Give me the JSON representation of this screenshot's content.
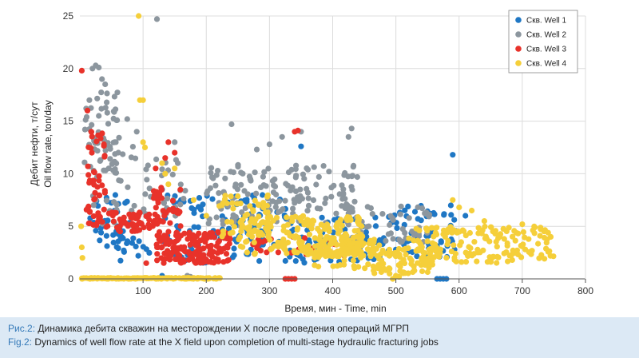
{
  "chart_data": {
    "type": "scatter",
    "xlabel": "Время, мин - Time, min",
    "ylabel_ru": "Дебит нефти, т/сут",
    "ylabel_en": "Oil flow rate, ton/day",
    "xlim": [
      0,
      800
    ],
    "ylim": [
      0,
      25
    ],
    "xticks": [
      100,
      200,
      300,
      400,
      500,
      600,
      700,
      800
    ],
    "yticks": [
      0,
      5,
      10,
      15,
      20,
      25
    ],
    "legend_position": "top-right",
    "series": [
      {
        "name": "Скв. Well 1",
        "color": "#1f77c4",
        "clusters": [
          {
            "x": [
              15,
              80
            ],
            "y": [
              3,
              8
            ],
            "n": 40
          },
          {
            "x": [
              60,
              110
            ],
            "y": [
              1,
              4
            ],
            "n": 15
          },
          {
            "x": [
              130,
              330
            ],
            "y": [
              1.5,
              8
            ],
            "n": 110
          },
          {
            "x": [
              330,
              480
            ],
            "y": [
              1.5,
              6
            ],
            "n": 70
          },
          {
            "x": [
              480,
              600
            ],
            "y": [
              2,
              7
            ],
            "n": 60
          }
        ],
        "points": [
          [
            590,
            11.8
          ],
          [
            565,
            0
          ],
          [
            570,
            0
          ],
          [
            575,
            0
          ],
          [
            580,
            0
          ],
          [
            130,
            0.3
          ],
          [
            350,
            12.6
          ],
          [
            130,
            8.5
          ],
          [
            160,
            7.5
          ],
          [
            610,
            6
          ]
        ]
      },
      {
        "name": "Скв. Well 2",
        "color": "#8c969e",
        "clusters": [
          {
            "x": [
              3,
              60
            ],
            "y": [
              10,
              18
            ],
            "n": 45
          },
          {
            "x": [
              20,
              90
            ],
            "y": [
              5,
              14
            ],
            "n": 40
          },
          {
            "x": [
              100,
              170
            ],
            "y": [
              6,
              12
            ],
            "n": 30
          },
          {
            "x": [
              200,
              440
            ],
            "y": [
              5,
              11
            ],
            "n": 160
          },
          {
            "x": [
              420,
              560
            ],
            "y": [
              3.5,
              7
            ],
            "n": 60
          }
        ],
        "points": [
          [
            122,
            24.7
          ],
          [
            20,
            20
          ],
          [
            25,
            20.3
          ],
          [
            30,
            20.1
          ],
          [
            35,
            19
          ],
          [
            40,
            18.5
          ],
          [
            15,
            17
          ],
          [
            10,
            16.2
          ],
          [
            90,
            14
          ],
          [
            150,
            13
          ],
          [
            155,
            11
          ],
          [
            240,
            14.7
          ],
          [
            280,
            12.3
          ],
          [
            300,
            12.8
          ],
          [
            320,
            13.5
          ],
          [
            350,
            14
          ],
          [
            430,
            14.3
          ],
          [
            425,
            13.5
          ],
          [
            170,
            0.3
          ],
          [
            175,
            0.2
          ],
          [
            30,
            15.5
          ],
          [
            55,
            13
          ],
          [
            75,
            15.2
          ]
        ]
      },
      {
        "name": "Скв. Well 3",
        "color": "#e8322a",
        "clusters": [
          {
            "x": [
              10,
              40
            ],
            "y": [
              5,
              14
            ],
            "n": 45
          },
          {
            "x": [
              20,
              110
            ],
            "y": [
              4.5,
              6.5
            ],
            "n": 60
          },
          {
            "x": [
              110,
              160
            ],
            "y": [
              5,
              9
            ],
            "n": 40
          },
          {
            "x": [
              120,
              240
            ],
            "y": [
              1.5,
              4.5
            ],
            "n": 170
          },
          {
            "x": [
              270,
              420
            ],
            "y": [
              2,
              4
            ],
            "n": 30
          }
        ],
        "points": [
          [
            3,
            19.8
          ],
          [
            340,
            14
          ],
          [
            345,
            14.1
          ],
          [
            325,
            0
          ],
          [
            330,
            0
          ],
          [
            335,
            0
          ],
          [
            340,
            0
          ],
          [
            135,
            11.5
          ],
          [
            140,
            13
          ],
          [
            150,
            12
          ],
          [
            120,
            10.5
          ],
          [
            105,
            1.5
          ],
          [
            12,
            16
          ],
          [
            18,
            14
          ]
        ]
      },
      {
        "name": "Скв. Well 4",
        "color": "#f5cf3a",
        "clusters": [
          {
            "x": [
              3,
              225
            ],
            "y": [
              0,
              0.1
            ],
            "n": 150
          },
          {
            "x": [
              220,
              300
            ],
            "y": [
              4,
              8
            ],
            "n": 50
          },
          {
            "x": [
              250,
              450
            ],
            "y": [
              2,
              6
            ],
            "n": 200
          },
          {
            "x": [
              370,
              480
            ],
            "y": [
              1,
              4
            ],
            "n": 90
          },
          {
            "x": [
              460,
              560
            ],
            "y": [
              0.5,
              3
            ],
            "n": 70
          },
          {
            "x": [
              520,
              750
            ],
            "y": [
              1.5,
              5
            ],
            "n": 170
          }
        ],
        "points": [
          [
            93,
            25
          ],
          [
            95,
            17
          ],
          [
            100,
            17
          ],
          [
            2,
            5
          ],
          [
            3,
            3
          ],
          [
            4,
            2
          ],
          [
            130,
            11
          ],
          [
            135,
            10
          ],
          [
            140,
            9
          ],
          [
            150,
            10.5
          ],
          [
            100,
            13
          ],
          [
            103,
            12.5
          ],
          [
            180,
            7.5
          ],
          [
            200,
            6
          ],
          [
            225,
            7
          ],
          [
            490,
            0.5
          ],
          [
            500,
            0.3
          ],
          [
            495,
            0
          ],
          [
            505,
            0.2
          ],
          [
            590,
            7.5
          ],
          [
            600,
            6.8
          ],
          [
            620,
            6.5
          ],
          [
            640,
            5.5
          ],
          [
            700,
            5.2
          ],
          [
            720,
            4.9
          ],
          [
            745,
            4
          ]
        ]
      }
    ]
  },
  "caption": {
    "ru_label": "Рис.2:",
    "ru_text": "Динамика дебита скважин на месторождении X после проведения операций МГРП",
    "en_label": "Fig.2:",
    "en_text": "Dynamics of well flow rate at the X field upon completion of multi-stage hydraulic fracturing jobs"
  }
}
